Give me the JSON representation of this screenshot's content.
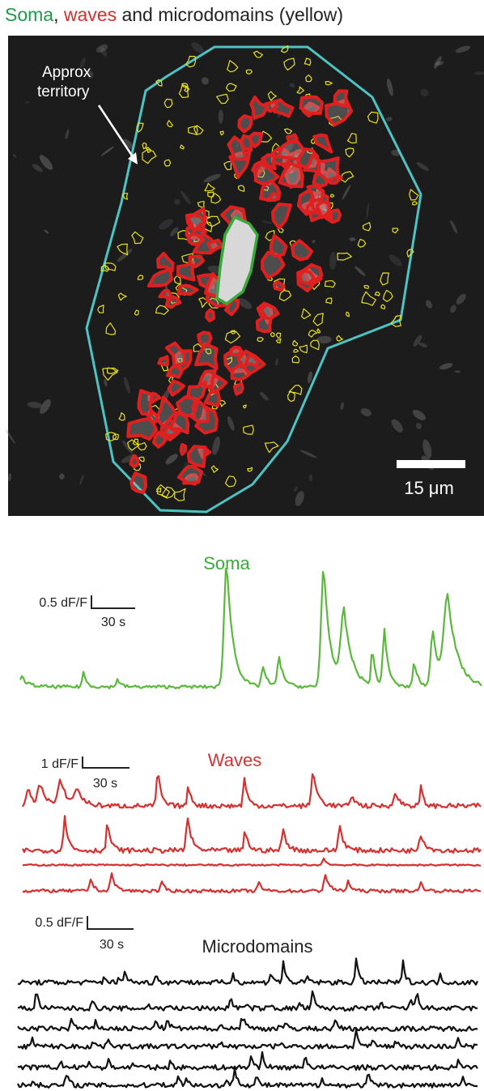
{
  "figure": {
    "title": {
      "parts": [
        "Soma",
        ",",
        "waves",
        "and microdomains (yellow)"
      ]
    },
    "image": {
      "annotation": "Approx territory",
      "scale_bar": "15 μm"
    },
    "soma_panel": {
      "label": "Soma",
      "scale_y": "0.5 dF/F",
      "scale_x": "30 s"
    },
    "waves_panel": {
      "label": "Waves",
      "scale_y": "1 dF/F",
      "scale_x": "30 s"
    },
    "microdomains_panel": {
      "label": "Microdomains",
      "scale_y": "0.5 dF/F",
      "scale_x": "30 s"
    }
  }
}
